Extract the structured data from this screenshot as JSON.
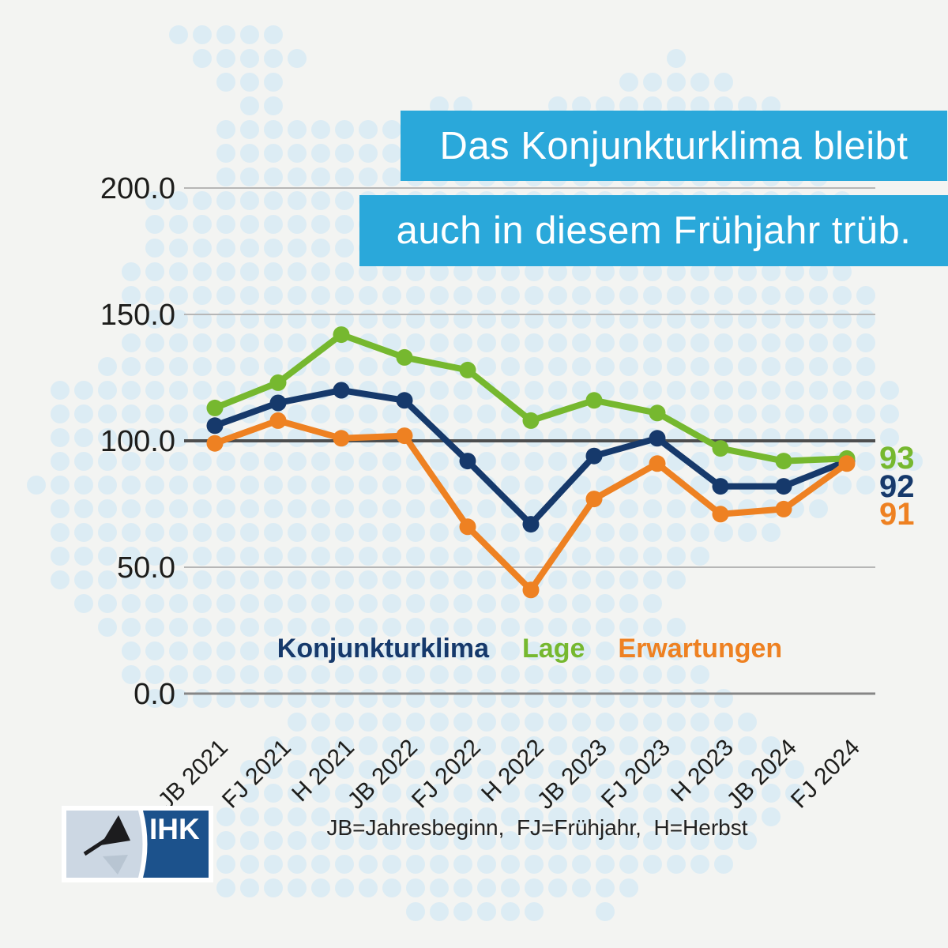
{
  "title": {
    "line1": "Das Konjunkturklima bleibt",
    "line2": "auch in diesem Frühjahr trüb."
  },
  "chart_data": {
    "type": "line",
    "categories": [
      "JB 2021",
      "FJ 2021",
      "H 2021",
      "JB 2022",
      "FJ 2022",
      "H 2022",
      "JB 2023",
      "FJ 2023",
      "H 2023",
      "JB 2024",
      "FJ 2024"
    ],
    "series": [
      {
        "name": "Konjunkturklima",
        "color": "#16396b",
        "values": [
          106,
          115,
          120,
          116,
          92,
          67,
          94,
          101,
          82,
          82,
          92
        ]
      },
      {
        "name": "Lage",
        "color": "#76b82f",
        "values": [
          113,
          123,
          142,
          133,
          128,
          108,
          116,
          111,
          97,
          92,
          93
        ]
      },
      {
        "name": "Erwartungen",
        "color": "#ee8122",
        "values": [
          99,
          108,
          101,
          102,
          66,
          41,
          77,
          91,
          71,
          73,
          91
        ]
      }
    ],
    "end_labels": [
      {
        "text": "93",
        "color": "#76b82f"
      },
      {
        "text": "92",
        "color": "#16396b"
      },
      {
        "text": "91",
        "color": "#ee8122"
      }
    ],
    "y_ticks": [
      "0.0",
      "50.0",
      "100.0",
      "150.0",
      "200.0"
    ],
    "ylim": [
      0,
      200
    ],
    "reference_line": 100,
    "grid": true,
    "legend_position": "bottom",
    "xlabel": "",
    "ylabel": ""
  },
  "legend": {
    "items": [
      {
        "label": "Konjunkturklima",
        "color": "#16396b"
      },
      {
        "label": "Lage",
        "color": "#76b82f"
      },
      {
        "label": "Erwartungen",
        "color": "#ee8122"
      }
    ]
  },
  "footnote": "JB=Jahresbeginn,  FJ=Frühjahr,  H=Herbst",
  "logo": {
    "text": "IHK"
  },
  "colors": {
    "background": "#f3f4f2",
    "dot": "#dcecf4",
    "headline_bg": "#2aa8da",
    "grid_light": "#b6b6b6",
    "grid_zero": "#868686",
    "grid_highlight": "#4e4e4e",
    "axis_text": "#1d1d1b"
  }
}
